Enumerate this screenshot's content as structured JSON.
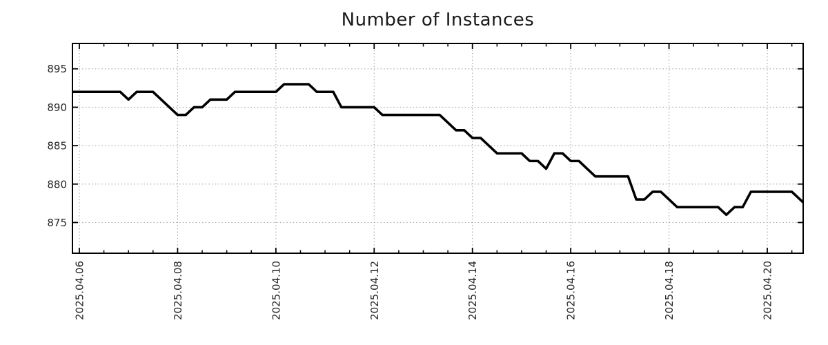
{
  "title": "Number of Instances",
  "chart_data": {
    "type": "line",
    "title": "Number of Instances",
    "xlabel": "",
    "ylabel": "",
    "start_time": "2025-04-05 20:00",
    "interval_hours": 4,
    "values": [
      892,
      892,
      892,
      892,
      892,
      892,
      892,
      891,
      892,
      892,
      892,
      891,
      890,
      889,
      889,
      890,
      890,
      891,
      891,
      891,
      892,
      892,
      892,
      892,
      892,
      892,
      893,
      893,
      893,
      893,
      892,
      892,
      892,
      890,
      890,
      890,
      890,
      890,
      889,
      889,
      889,
      889,
      889,
      889,
      889,
      889,
      888,
      887,
      887,
      886,
      886,
      885,
      884,
      884,
      884,
      884,
      883,
      883,
      882,
      884,
      884,
      883,
      883,
      882,
      881,
      881,
      881,
      881,
      881,
      878,
      878,
      879,
      879,
      878,
      877,
      877,
      877,
      877,
      877,
      877,
      876,
      877,
      877,
      879,
      879,
      879,
      879,
      879,
      879,
      878,
      877
    ],
    "x_tick_labels": [
      "2025.04.06",
      "2025.04.08",
      "2025.04.10",
      "2025.04.12",
      "2025.04.14",
      "2025.04.16",
      "2025.04.18",
      "2025.04.20"
    ],
    "x_tick_days": [
      6,
      8,
      10,
      12,
      14,
      16,
      18,
      20
    ],
    "y_tick_labels": [
      "875",
      "880",
      "885",
      "890",
      "895"
    ],
    "y_ticks": [
      875,
      880,
      885,
      890,
      895
    ],
    "x_range_days": [
      5.86,
      20.73
    ],
    "y_range": [
      871.0,
      898.3
    ],
    "minor_tick_interval_days": 0.5,
    "grid": true,
    "legend": false,
    "line_color": "#000000",
    "grid_color": "#ababab",
    "axis_color": "#000000",
    "label_color": "#262626"
  }
}
